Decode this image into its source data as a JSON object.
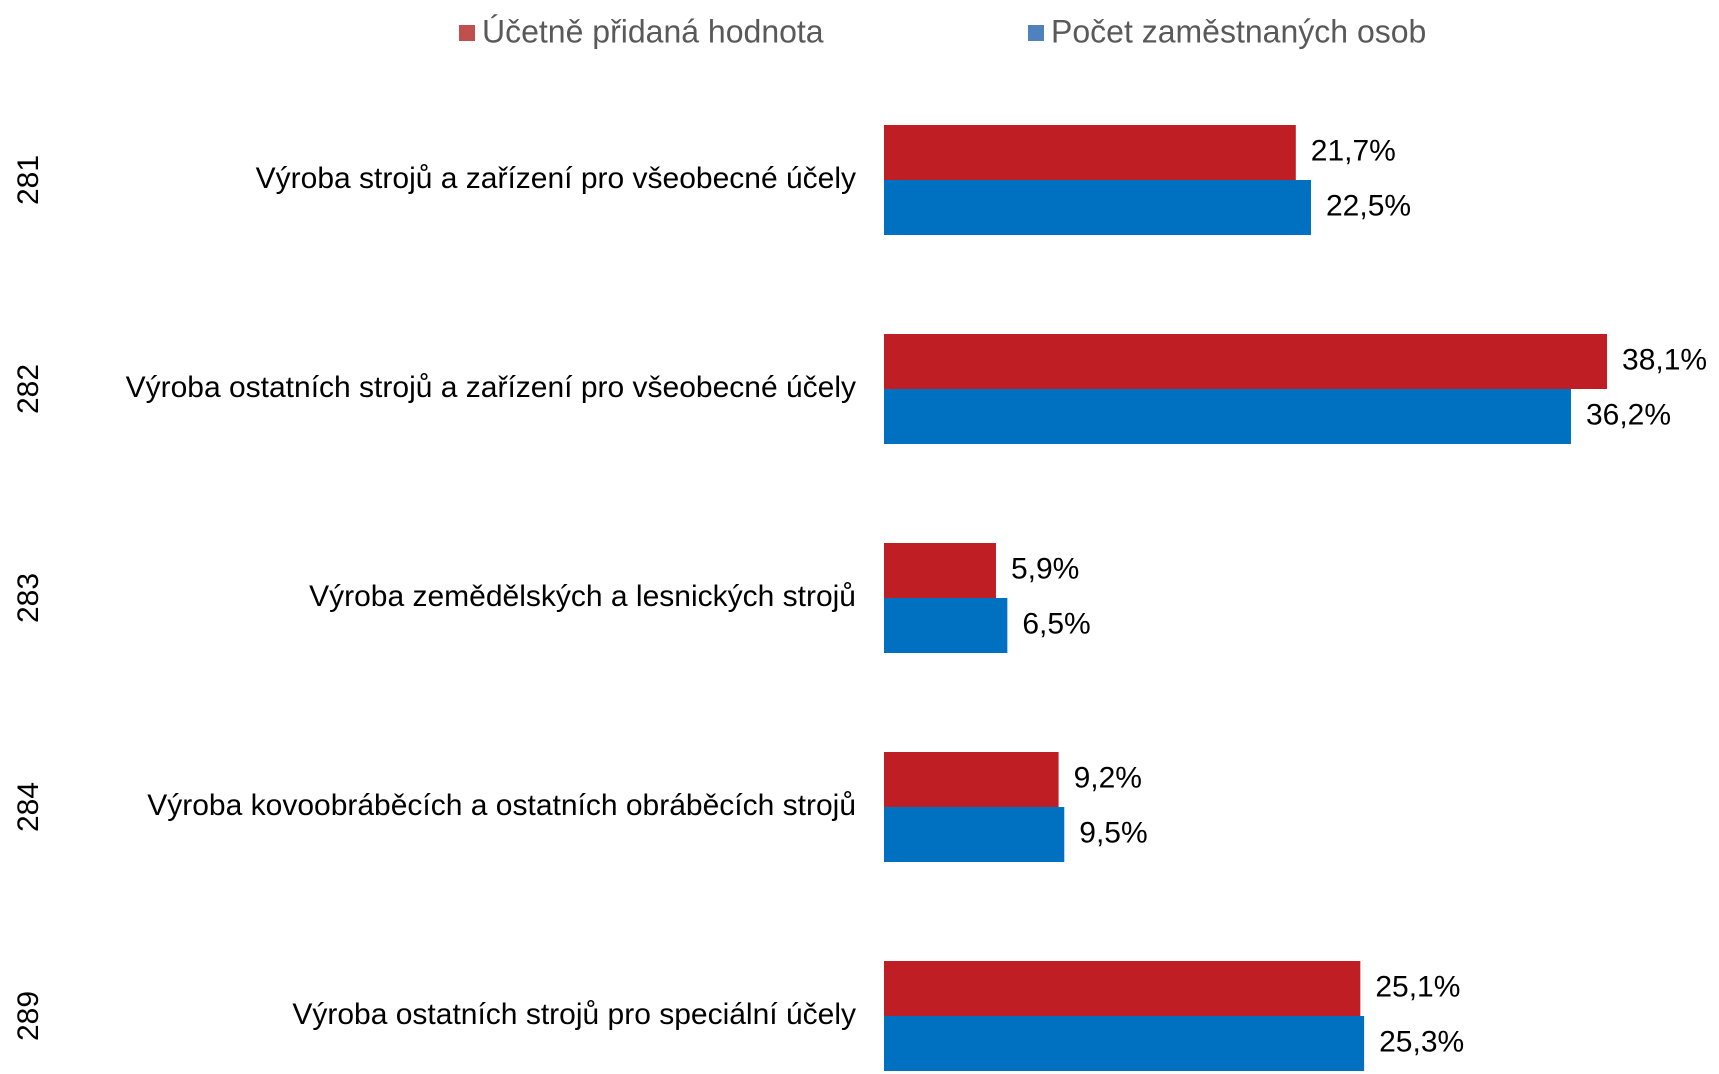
{
  "chart_data": {
    "type": "bar",
    "orientation": "horizontal",
    "codes": [
      "281",
      "282",
      "283",
      "284",
      "289"
    ],
    "categories": [
      "Výroba strojů a zařízení pro všeobecné účely",
      "Výroba ostatních strojů a zařízení pro všeobecné účely",
      "Výroba zemědělských a lesnických strojů",
      "Výroba kovoobráběcích a ostatních obráběcích strojů",
      "Výroba ostatních strojů pro speciální účely"
    ],
    "series": [
      {
        "name": "Účetně přidaná hodnota",
        "color": "#be1e24",
        "legend_color": "#c0504d",
        "values": [
          21.7,
          38.1,
          5.9,
          9.2,
          25.1
        ],
        "value_labels": [
          "21,7%",
          "38,1%",
          "5,9%",
          "9,2%",
          "25,1%"
        ]
      },
      {
        "name": "Počet zaměstnaných osob",
        "color": "#0070c0",
        "legend_color": "#4f81bd",
        "values": [
          22.5,
          36.2,
          6.5,
          9.5,
          25.3
        ],
        "value_labels": [
          "22,5%",
          "36,2%",
          "6,5%",
          "9,5%",
          "25,3%"
        ]
      }
    ],
    "xlim": [
      0,
      44
    ],
    "legend": "top"
  }
}
